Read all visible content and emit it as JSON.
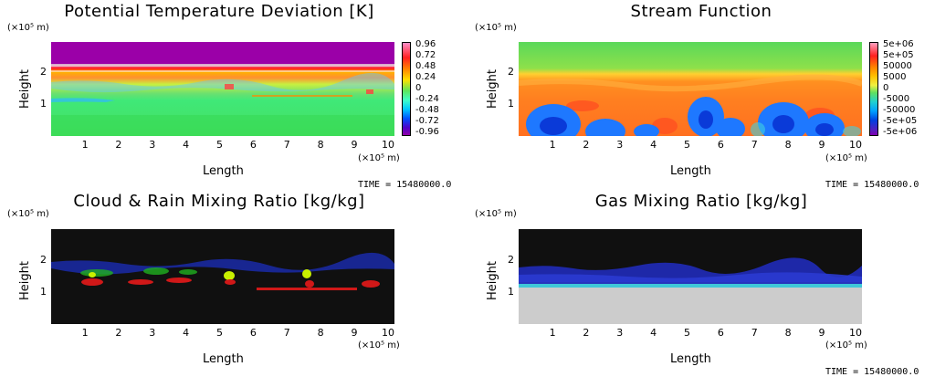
{
  "common": {
    "length_label": "Length",
    "height_label": "Height",
    "y_unit_label": "(×10⁵ m)",
    "x_unit_label": "(×10⁵ m)",
    "time_text": "TIME = 15480000.0",
    "x_ticks": [
      "1",
      "2",
      "3",
      "4",
      "5",
      "6",
      "7",
      "8",
      "9",
      "10"
    ],
    "y_ticks": [
      "1",
      "2"
    ]
  },
  "chart_data": [
    {
      "type": "heatmap",
      "title": "Potential Temperature Deviation [K]",
      "xlabel": "Length",
      "ylabel": "Height",
      "xlim": [
        0,
        10.2
      ],
      "ylim": [
        0,
        3
      ],
      "colorbar": {
        "labels": [
          "0.96",
          "0.72",
          "0.48",
          "0.24",
          "0",
          "-0.24",
          "-0.48",
          "-0.72",
          "-0.96"
        ],
        "colors": [
          "#ff8ec8",
          "#ff2020",
          "#ff8000",
          "#ffe000",
          "#5de65d",
          "#40ffc8",
          "#00c8ff",
          "#0050ff",
          "#5000c8",
          "#9000a8"
        ]
      }
    },
    {
      "type": "heatmap",
      "title": "Stream Function",
      "xlabel": "Length",
      "ylabel": "Height",
      "xlim": [
        0,
        10.2
      ],
      "ylim": [
        0,
        3
      ],
      "colorbar": {
        "labels": [
          "5e+06",
          "5e+05",
          "50000",
          "5000",
          "0",
          "-5000",
          "-50000",
          "-5e+05",
          "-5e+06"
        ],
        "colors": [
          "#ffa0c0",
          "#ff2020",
          "#ff8000",
          "#ffc000",
          "#f0f040",
          "#60e060",
          "#20d0d0",
          "#00a0ff",
          "#0040e0",
          "#5020c0",
          "#8000b0"
        ]
      }
    },
    {
      "type": "heatmap",
      "title": "Cloud & Rain Mixing Ratio [kg/kg]",
      "xlabel": "Length",
      "ylabel": "Height",
      "xlim": [
        0,
        10.2
      ],
      "ylim": [
        0,
        3
      ]
    },
    {
      "type": "heatmap",
      "title": "Gas Mixing Ratio [kg/kg]",
      "xlabel": "Length",
      "ylabel": "Height",
      "xlim": [
        0,
        10.2
      ],
      "ylim": [
        0,
        3
      ]
    }
  ]
}
